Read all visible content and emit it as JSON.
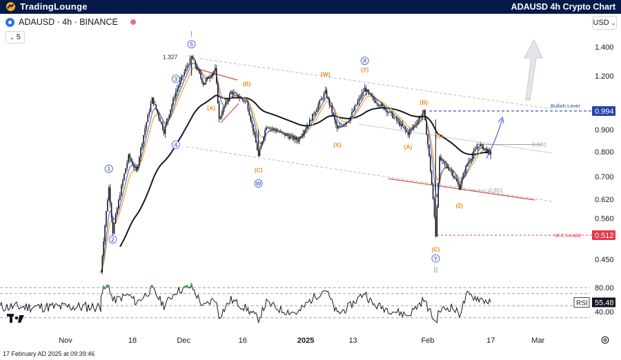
{
  "header": {
    "brand_name": "TradingLounge",
    "chart_title": "ADAUSD 4h Crypto Chart",
    "background": "#061a4a",
    "accent": "#f5a623"
  },
  "symbol_bar": {
    "symbol": "ADAUSD · 4h · BINANCE",
    "indicator_count": "5",
    "currency": "USD"
  },
  "footer": {
    "timestamp": "17 February AD 2025 at 09:39:46"
  },
  "chart_data": {
    "type": "candlestick",
    "title": "ADAUSD 4h Crypto Chart",
    "price_axis": {
      "scale": "log",
      "ticks": [
        "1.400",
        "1.200",
        "0.994",
        "0.900",
        "0.800",
        "0.700",
        "0.620",
        "0.560",
        "0.512",
        "0.450"
      ]
    },
    "time_axis": {
      "ticks": [
        "Nov",
        "18",
        "Dec",
        "16",
        "2025",
        "13",
        "Feb",
        "17",
        "Mar"
      ]
    },
    "price_series": [
      {
        "date": "2024-11-10",
        "price": 0.42
      },
      {
        "date": "2024-11-12",
        "price": 0.66
      },
      {
        "date": "2024-11-13",
        "price": 0.52
      },
      {
        "date": "2024-11-17",
        "price": 0.78
      },
      {
        "date": "2024-11-19",
        "price": 0.72
      },
      {
        "date": "2024-11-23",
        "price": 1.06
      },
      {
        "date": "2024-11-26",
        "price": 0.89
      },
      {
        "date": "2024-11-29",
        "price": 1.1
      },
      {
        "date": "2024-12-03",
        "price": 1.327
      },
      {
        "date": "2024-12-06",
        "price": 1.15
      },
      {
        "date": "2024-12-09",
        "price": 1.24
      },
      {
        "date": "2024-12-10",
        "price": 0.95
      },
      {
        "date": "2024-12-13",
        "price": 1.1
      },
      {
        "date": "2024-12-17",
        "price": 1.04
      },
      {
        "date": "2024-12-20",
        "price": 0.78
      },
      {
        "date": "2024-12-22",
        "price": 0.92
      },
      {
        "date": "2024-12-26",
        "price": 0.88
      },
      {
        "date": "2024-12-30",
        "price": 0.85
      },
      {
        "date": "2025-01-02",
        "price": 0.94
      },
      {
        "date": "2025-01-06",
        "price": 1.1
      },
      {
        "date": "2025-01-09",
        "price": 0.9
      },
      {
        "date": "2025-01-12",
        "price": 0.95
      },
      {
        "date": "2025-01-16",
        "price": 1.12
      },
      {
        "date": "2025-01-18",
        "price": 1.06
      },
      {
        "date": "2025-01-22",
        "price": 0.99
      },
      {
        "date": "2025-01-27",
        "price": 0.88
      },
      {
        "date": "2025-01-31",
        "price": 0.99
      },
      {
        "date": "2025-02-03",
        "price": 0.512
      },
      {
        "date": "2025-02-04",
        "price": 0.77
      },
      {
        "date": "2025-02-07",
        "price": 0.72
      },
      {
        "date": "2025-02-09",
        "price": 0.66
      },
      {
        "date": "2025-02-11",
        "price": 0.75
      },
      {
        "date": "2025-02-14",
        "price": 0.831
      },
      {
        "date": "2025-02-17",
        "price": 0.79
      }
    ],
    "price_levels": [
      {
        "label": "Bullish Level",
        "value": 0.994
      },
      {
        "label": "W.C.Invalid",
        "value": 0.512
      }
    ],
    "annotations": [
      {
        "text": "1.327",
        "value": 1.327
      },
      {
        "text": "0.831",
        "value": 0.831
      },
      {
        "text": "0.651",
        "value": 0.651
      }
    ],
    "wave_labels": [
      {
        "text": "1",
        "circled": true,
        "color": "#5b6fd6",
        "date": "2024-11-12",
        "price": 0.73
      },
      {
        "text": "2",
        "circled": true,
        "color": "#5b6fd6",
        "date": "2024-11-13",
        "price": 0.5
      },
      {
        "text": "3",
        "circled": true,
        "color": "#5b6fd6",
        "date": "2024-11-29",
        "price": 1.18
      },
      {
        "text": "4",
        "circled": true,
        "color": "#5b6fd6",
        "date": "2024-11-29",
        "price": 0.83
      },
      {
        "text": "5",
        "circled": true,
        "color": "#5b6fd6",
        "date": "2024-12-03",
        "price": 1.42
      },
      {
        "text": "(A)",
        "circled": false,
        "color": "#f08a1c",
        "date": "2024-12-08",
        "price": 1.01
      },
      {
        "text": "(B)",
        "circled": false,
        "color": "#f08a1c",
        "date": "2024-12-17",
        "price": 1.15
      },
      {
        "text": "(C)",
        "circled": false,
        "color": "#f08a1c",
        "date": "2024-12-20",
        "price": 0.725
      },
      {
        "text": "W",
        "circled": true,
        "color": "#5b6fd6",
        "date": "2024-12-20",
        "price": 0.675
      },
      {
        "text": "(W)",
        "circled": false,
        "color": "#f08a1c",
        "date": "2025-01-06",
        "price": 1.21
      },
      {
        "text": "(X)",
        "circled": false,
        "color": "#f08a1c",
        "date": "2025-01-09",
        "price": 0.83
      },
      {
        "text": "(Y)",
        "circled": false,
        "color": "#f08a1c",
        "date": "2025-01-16",
        "price": 1.24
      },
      {
        "text": "X",
        "circled": true,
        "color": "#5b6fd6",
        "date": "2025-01-16",
        "price": 1.3
      },
      {
        "text": "(B)",
        "circled": false,
        "color": "#f08a1c",
        "date": "2025-01-31",
        "price": 1.04
      },
      {
        "text": "(A)",
        "circled": false,
        "color": "#f08a1c",
        "date": "2025-01-27",
        "price": 0.82
      },
      {
        "text": "(1)",
        "circled": false,
        "color": "#f08a1c",
        "date": "2025-02-04",
        "price": 0.87
      },
      {
        "text": "(2)",
        "circled": false,
        "color": "#f08a1c",
        "date": "2025-02-09",
        "price": 0.6
      },
      {
        "text": "(C)",
        "circled": false,
        "color": "#f08a1c",
        "date": "2025-02-03",
        "price": 0.475
      },
      {
        "text": "Y",
        "circled": true,
        "color": "#5b6fd6",
        "date": "2025-02-03",
        "price": 0.452
      },
      {
        "text": "I",
        "circled": false,
        "color": "#9aa0a6",
        "date": "2024-12-03",
        "price": 1.5
      },
      {
        "text": "II",
        "circled": false,
        "color": "#9aa0a6",
        "date": "2025-02-03",
        "price": 0.425
      }
    ],
    "rsi": {
      "label": "RSI",
      "current": "55.48",
      "ticks": [
        "80.00",
        "40.00"
      ],
      "levels": [
        80,
        70,
        50,
        30
      ],
      "series": [
        {
          "date": "2024-11-10",
          "value": 72
        },
        {
          "date": "2024-11-12",
          "value": 84
        },
        {
          "date": "2024-11-13",
          "value": 58
        },
        {
          "date": "2024-11-17",
          "value": 68
        },
        {
          "date": "2024-11-19",
          "value": 55
        },
        {
          "date": "2024-11-23",
          "value": 78
        },
        {
          "date": "2024-11-26",
          "value": 50
        },
        {
          "date": "2024-11-29",
          "value": 74
        },
        {
          "date": "2024-12-03",
          "value": 82
        },
        {
          "date": "2024-12-06",
          "value": 48
        },
        {
          "date": "2024-12-09",
          "value": 62
        },
        {
          "date": "2024-12-10",
          "value": 32
        },
        {
          "date": "2024-12-13",
          "value": 60
        },
        {
          "date": "2024-12-17",
          "value": 45
        },
        {
          "date": "2024-12-20",
          "value": 28
        },
        {
          "date": "2024-12-22",
          "value": 55
        },
        {
          "date": "2024-12-26",
          "value": 42
        },
        {
          "date": "2024-12-30",
          "value": 38
        },
        {
          "date": "2025-01-02",
          "value": 58
        },
        {
          "date": "2025-01-06",
          "value": 78
        },
        {
          "date": "2025-01-09",
          "value": 36
        },
        {
          "date": "2025-01-12",
          "value": 48
        },
        {
          "date": "2025-01-16",
          "value": 72
        },
        {
          "date": "2025-01-18",
          "value": 52
        },
        {
          "date": "2025-01-22",
          "value": 44
        },
        {
          "date": "2025-01-27",
          "value": 34
        },
        {
          "date": "2025-01-31",
          "value": 60
        },
        {
          "date": "2025-02-03",
          "value": 22
        },
        {
          "date": "2025-02-04",
          "value": 42
        },
        {
          "date": "2025-02-07",
          "value": 48
        },
        {
          "date": "2025-02-09",
          "value": 36
        },
        {
          "date": "2025-02-11",
          "value": 68
        },
        {
          "date": "2025-02-14",
          "value": 62
        },
        {
          "date": "2025-02-17",
          "value": 55.48
        }
      ]
    },
    "colors": {
      "candle": "#131722",
      "ma_long": "#131722",
      "ma_blue": "#5b6fd6",
      "ma_orange": "#f5a623",
      "bullish": "#2443a6",
      "invalid": "#e8394a",
      "rsi_overbought": "#4caf50"
    }
  }
}
